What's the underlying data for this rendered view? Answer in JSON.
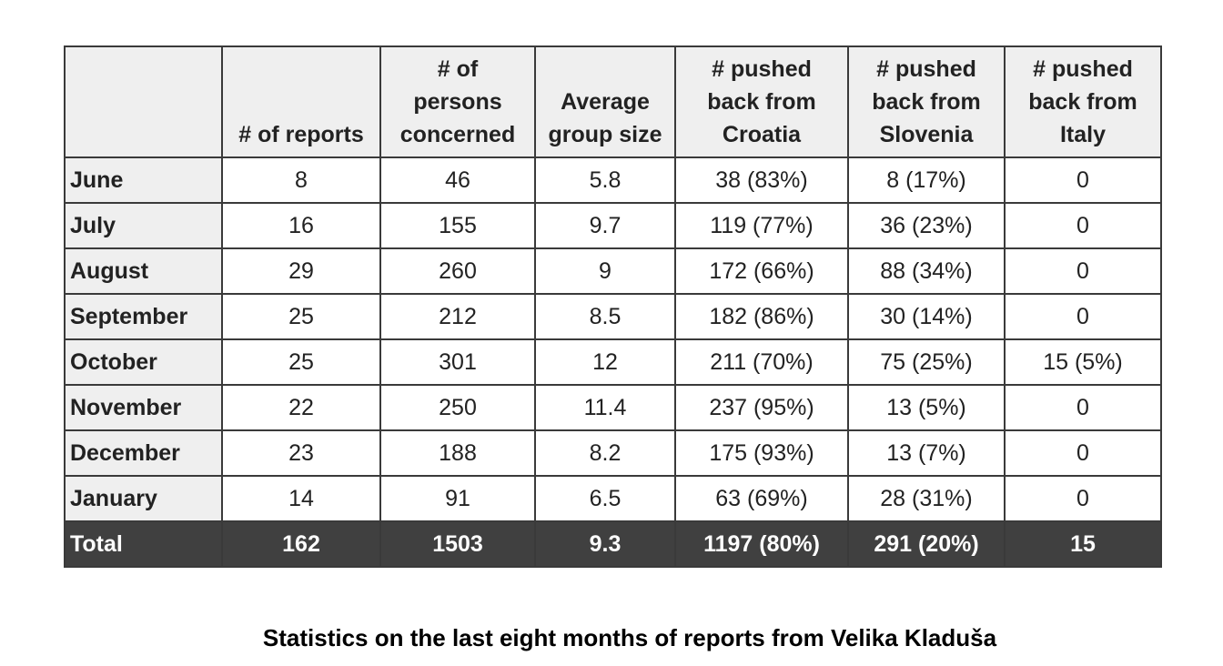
{
  "chart_data": {
    "type": "table",
    "title": "Statistics on the last eight months of reports from Velika Kladuša",
    "columns": [
      "",
      "# of reports",
      "# of persons concerned",
      "Average group size",
      "# pushed back from Croatia",
      "# pushed back from Slovenia",
      "# pushed back from Italy"
    ],
    "rows": [
      {
        "month": "June",
        "reports": "8",
        "persons": "46",
        "avg": "5.8",
        "croatia": "38 (83%)",
        "slovenia": "8 (17%)",
        "italy": "0"
      },
      {
        "month": "July",
        "reports": "16",
        "persons": "155",
        "avg": "9.7",
        "croatia": "119 (77%)",
        "slovenia": "36 (23%)",
        "italy": "0"
      },
      {
        "month": "August",
        "reports": "29",
        "persons": "260",
        "avg": "9",
        "croatia": "172 (66%)",
        "slovenia": "88 (34%)",
        "italy": "0"
      },
      {
        "month": "September",
        "reports": "25",
        "persons": "212",
        "avg": "8.5",
        "croatia": "182 (86%)",
        "slovenia": "30 (14%)",
        "italy": "0"
      },
      {
        "month": "October",
        "reports": "25",
        "persons": "301",
        "avg": "12",
        "croatia": "211 (70%)",
        "slovenia": "75 (25%)",
        "italy": "15 (5%)"
      },
      {
        "month": "November",
        "reports": "22",
        "persons": "250",
        "avg": "11.4",
        "croatia": "237 (95%)",
        "slovenia": "13 (5%)",
        "italy": "0"
      },
      {
        "month": "December",
        "reports": "23",
        "persons": "188",
        "avg": "8.2",
        "croatia": "175 (93%)",
        "slovenia": "13 (7%)",
        "italy": "0"
      },
      {
        "month": "January",
        "reports": "14",
        "persons": "91",
        "avg": "6.5",
        "croatia": "63 (69%)",
        "slovenia": "28 (31%)",
        "italy": "0"
      }
    ],
    "total": {
      "month": "Total",
      "reports": "162",
      "persons": "1503",
      "avg": "9.3",
      "croatia": "1197 (80%)",
      "slovenia": "291 (20%)",
      "italy": "15"
    }
  },
  "header_lines": {
    "reports": [
      "# of reports"
    ],
    "persons": [
      "# of",
      "persons",
      "concerned"
    ],
    "avg": [
      "Average",
      "group size"
    ],
    "croatia": [
      "# pushed",
      "back from",
      "Croatia"
    ],
    "slovenia": [
      "# pushed",
      "back from",
      "Slovenia"
    ],
    "italy": [
      "# pushed",
      "back from",
      "Italy"
    ]
  },
  "colors": {
    "header_bg": "#efefef",
    "total_bg": "#404040",
    "total_text": "#ffffff",
    "border": "#3a3a3a"
  }
}
